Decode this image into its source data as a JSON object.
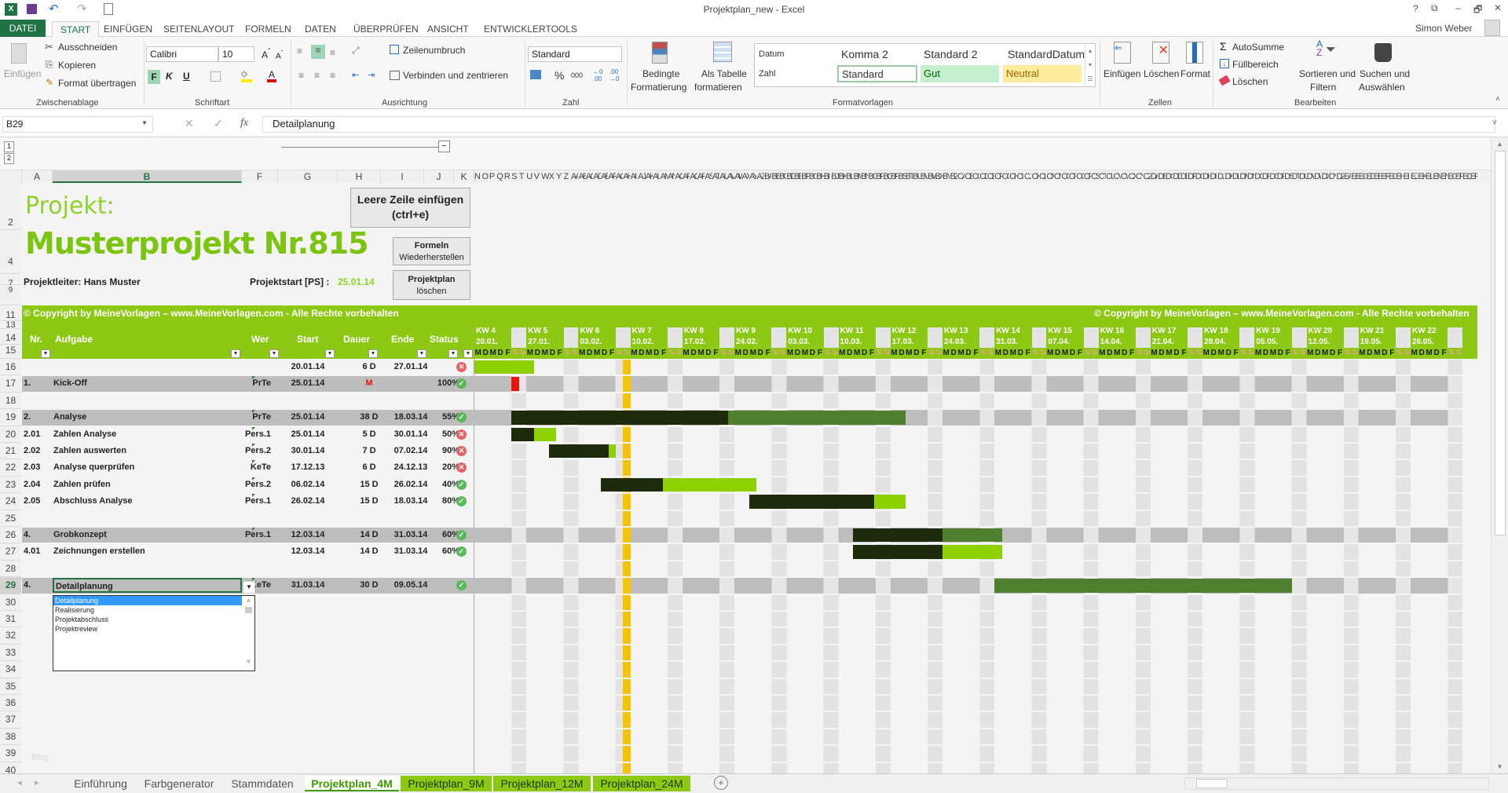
{
  "window": {
    "title": "Projektplan_new - Excel",
    "user": "Simon Weber",
    "controls": [
      "?",
      "⧉",
      "–",
      "🗗",
      "✕"
    ]
  },
  "ribbon_tabs": [
    "DATEI",
    "START",
    "EINFÜGEN",
    "SEITENLAYOUT",
    "FORMELN",
    "DATEN",
    "ÜBERPRÜFEN",
    "ANSICHT",
    "ENTWICKLERTOOLS"
  ],
  "ribbon": {
    "clipboard": {
      "paste": "Einfügen",
      "cut": "Ausschneiden",
      "copy": "Kopieren",
      "format_painter": "Format übertragen",
      "group": "Zwischenablage"
    },
    "font": {
      "name": "Calibri",
      "size": "10",
      "bold": "F",
      "italic": "K",
      "underline": "U",
      "group": "Schriftart"
    },
    "alignment": {
      "wrap": "Zeilenumbruch",
      "merge": "Verbinden und zentrieren",
      "group": "Ausrichtung"
    },
    "number": {
      "format": "Standard",
      "percent": "%",
      "thousands": "000",
      "group": "Zahl"
    },
    "styles": {
      "conditional_1": "Bedingte",
      "conditional_2": "Formatierung",
      "table_1": "Als Tabelle",
      "table_2": "formatieren",
      "gallery": [
        "Datum",
        "Komma 2",
        "Standard 2",
        "StandardDatum",
        "Zahl",
        "Standard",
        "Gut",
        "Neutral"
      ],
      "group": "Formatvorlagen"
    },
    "cells": {
      "insert": "Einfügen",
      "delete": "Löschen",
      "format": "Format",
      "group": "Zellen"
    },
    "editing": {
      "autosum": "AutoSumme",
      "fill": "Füllbereich",
      "clear": "Löschen",
      "sort_1": "Sortieren und",
      "sort_2": "Filtern",
      "find_1": "Suchen und",
      "find_2": "Auswählen",
      "group": "Bearbeiten"
    }
  },
  "formula_bar": {
    "name_box": "B29",
    "content": "Detailplanung",
    "fx": "fx"
  },
  "outline_levels": [
    "1",
    "2"
  ],
  "columns": [
    "A",
    "B",
    "F",
    "G",
    "H",
    "I",
    "J",
    "K"
  ],
  "gantt_first_column": "N",
  "header_rows": [
    "2",
    "4",
    "7",
    "9",
    "11",
    "13",
    "14",
    "15"
  ],
  "sheet": {
    "project_label": "Projekt:",
    "project_name": "Musterprojekt Nr.815",
    "manager": "Projektleiter: Hans Muster",
    "start_label": "Projektstart [PS] :",
    "start_value": "25.01.14",
    "btn_insert_row": "Leere Zeile einfügen",
    "btn_insert_row_hint": "(ctrl+e)",
    "btn_restore_1": "Formeln",
    "btn_restore_2": "Wiederherstellen",
    "btn_delete_1": "Projektplan",
    "btn_delete_2": "löschen",
    "copyright": "© Copyright by MeineVorlagen – www.MeineVorlagen.com - Alle Rechte vorbehalten",
    "faint_text": "Blog"
  },
  "table_headers": {
    "nr": "Nr.",
    "task": "Aufgabe",
    "who": "Wer",
    "start": "Start",
    "duration": "Dauer",
    "end": "Ende",
    "status": "Status"
  },
  "rows": [
    {
      "row": "16",
      "type": "task",
      "nr": "",
      "task": "",
      "who": "",
      "start": "20.01.14",
      "duration": "6 D",
      "end": "27.01.14",
      "progress": "",
      "status": "err"
    },
    {
      "row": "17",
      "type": "summary",
      "nr": "1.",
      "task": "Kick-Off",
      "who": "PrTe",
      "start": "25.01.14",
      "duration": "M",
      "end": "",
      "progress": "100%",
      "status": "ok"
    },
    {
      "row": "18",
      "type": "blank"
    },
    {
      "row": "19",
      "type": "summary",
      "nr": "2.",
      "task": "Analyse",
      "who": "PrTe",
      "start": "25.01.14",
      "duration": "38 D",
      "end": "18.03.14",
      "progress": "55%",
      "status": "ok"
    },
    {
      "row": "20",
      "type": "task",
      "nr": "2.01",
      "task": "Zahlen Analyse",
      "who": "Pers.1",
      "start": "25.01.14",
      "duration": "5 D",
      "end": "30.01.14",
      "progress": "50%",
      "status": "err"
    },
    {
      "row": "21",
      "type": "task",
      "nr": "2.02",
      "task": "Zahlen auswerten",
      "who": "Pers.2",
      "start": "30.01.14",
      "duration": "7 D",
      "end": "07.02.14",
      "progress": "90%",
      "status": "err"
    },
    {
      "row": "22",
      "type": "task",
      "nr": "2.03",
      "task": "Analyse querprüfen",
      "who": "KeTe",
      "start": "17.12.13",
      "duration": "6 D",
      "end": "24.12.13",
      "progress": "20%",
      "status": "err"
    },
    {
      "row": "23",
      "type": "task",
      "nr": "2.04",
      "task": "Zahlen prüfen",
      "who": "Pers.2",
      "start": "06.02.14",
      "duration": "15 D",
      "end": "26.02.14",
      "progress": "40%",
      "status": "ok"
    },
    {
      "row": "24",
      "type": "task",
      "nr": "2.05",
      "task": "Abschluss Analyse",
      "who": "Pers.1",
      "start": "26.02.14",
      "duration": "15 D",
      "end": "18.03.14",
      "progress": "80%",
      "status": "ok"
    },
    {
      "row": "25",
      "type": "blank"
    },
    {
      "row": "26",
      "type": "summary",
      "nr": "4.",
      "task": "Grobkonzept",
      "who": "Pers.1",
      "start": "12.03.14",
      "duration": "14 D",
      "end": "31.03.14",
      "progress": "60%",
      "status": "ok"
    },
    {
      "row": "27",
      "type": "task",
      "nr": "4.01",
      "task": "Zeichnungen erstellen",
      "who": "",
      "start": "12.03.14",
      "duration": "14 D",
      "end": "31.03.14",
      "progress": "60%",
      "status": "ok"
    },
    {
      "row": "28",
      "type": "blank"
    },
    {
      "row": "29",
      "type": "summary",
      "nr": "4.",
      "task": "Detailplanung",
      "who": "KeTe",
      "start": "31.03.14",
      "duration": "30 D",
      "end": "09.05.14",
      "progress": "",
      "status": "ok"
    },
    {
      "row": "30",
      "type": "blank"
    },
    {
      "row": "31",
      "type": "blank"
    },
    {
      "row": "32",
      "type": "blank"
    },
    {
      "row": "33",
      "type": "blank"
    },
    {
      "row": "34",
      "type": "blank"
    },
    {
      "row": "35",
      "type": "blank"
    },
    {
      "row": "36",
      "type": "blank"
    },
    {
      "row": "37",
      "type": "blank"
    },
    {
      "row": "38",
      "type": "blank"
    },
    {
      "row": "39",
      "type": "blank"
    },
    {
      "row": "40",
      "type": "blank"
    }
  ],
  "dropdown": {
    "options": [
      "Detailplanung",
      "Realisierung",
      "Projektabschluss",
      "Projektreview"
    ],
    "selected": "Detailplanung"
  },
  "gantt": {
    "weeks": [
      {
        "kw": "KW 4",
        "date": "20.01."
      },
      {
        "kw": "KW 5",
        "date": "27.01."
      },
      {
        "kw": "KW 6",
        "date": "03.02."
      },
      {
        "kw": "KW 7",
        "date": "10.02."
      },
      {
        "kw": "KW 8",
        "date": "17.02."
      },
      {
        "kw": "KW 9",
        "date": "24.02."
      },
      {
        "kw": "KW 10",
        "date": "03.03."
      },
      {
        "kw": "KW 11",
        "date": "10.03."
      },
      {
        "kw": "KW 12",
        "date": "17.03."
      },
      {
        "kw": "KW 13",
        "date": "24.03."
      },
      {
        "kw": "KW 14",
        "date": "31.03."
      },
      {
        "kw": "KW 15",
        "date": "07.04."
      },
      {
        "kw": "KW 16",
        "date": "14.04."
      },
      {
        "kw": "KW 17",
        "date": "21.04."
      },
      {
        "kw": "KW 18",
        "date": "28.04."
      },
      {
        "kw": "KW 19",
        "date": "05.05."
      },
      {
        "kw": "KW 20",
        "date": "12.05."
      },
      {
        "kw": "KW 21",
        "date": "19.05."
      },
      {
        "kw": "KW 22",
        "date": "26.05."
      }
    ],
    "weekday_letters": [
      "M",
      "D",
      "M",
      "D",
      "F",
      "S",
      "S"
    ],
    "today": "09.02.14",
    "colors": {
      "done": "#1f2a0a",
      "remaining_task": "#8fd000",
      "remaining_summary": "#4e7f2e",
      "milestone": "#e8140f",
      "today": "#f5c400",
      "weekend": "#e2e2e2",
      "header": "#8cc814",
      "weekend_letter": "#e8a48c"
    }
  },
  "sheet_tabs": [
    {
      "label": "Einführung",
      "style": "plain"
    },
    {
      "label": "Farbgenerator",
      "style": "plain"
    },
    {
      "label": "Stammdaten",
      "style": "plain"
    },
    {
      "label": "Projektplan_4M",
      "style": "active"
    },
    {
      "label": "Projektplan_9M",
      "style": "green"
    },
    {
      "label": "Projektplan_12M",
      "style": "green"
    },
    {
      "label": "Projektplan_24M",
      "style": "green"
    }
  ],
  "add_sheet": "+"
}
